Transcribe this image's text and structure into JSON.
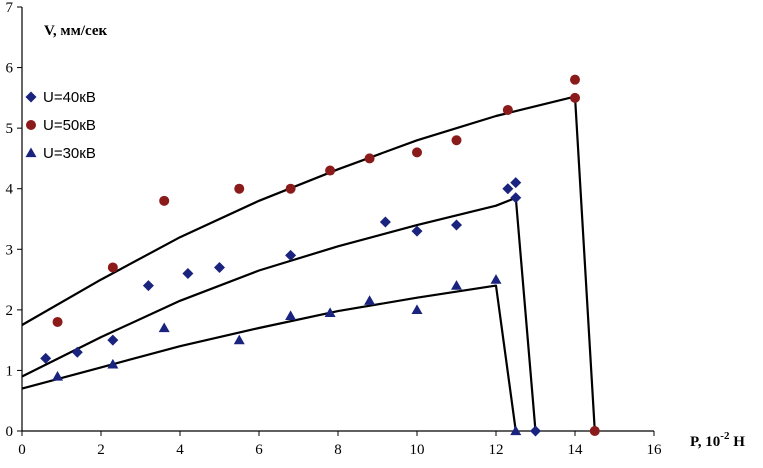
{
  "chart_data": {
    "type": "scatter",
    "title": "",
    "ylabel": "V, мм/сек",
    "xlabel": "P, 10",
    "xlabel_exp": "-2",
    "xlabel_unit": " Н",
    "xlim": [
      0,
      16
    ],
    "ylim": [
      0,
      7
    ],
    "xticks": [
      "0",
      "2",
      "4",
      "6",
      "8",
      "10",
      "12",
      "14",
      "16"
    ],
    "yticks": [
      "0",
      "1",
      "2",
      "3",
      "4",
      "5",
      "6",
      "7"
    ],
    "grid": false,
    "legend_position": "top-left",
    "series": [
      {
        "name": "U=40кВ",
        "marker": "diamond",
        "color": "#1a237e",
        "points": [
          [
            0.6,
            1.2
          ],
          [
            1.4,
            1.3
          ],
          [
            2.3,
            1.5
          ],
          [
            3.2,
            2.4
          ],
          [
            4.2,
            2.6
          ],
          [
            5.0,
            2.7
          ],
          [
            6.8,
            2.9
          ],
          [
            9.2,
            3.45
          ],
          [
            10.0,
            3.3
          ],
          [
            11.0,
            3.4
          ],
          [
            12.3,
            4.0
          ],
          [
            12.5,
            4.1
          ],
          [
            12.5,
            3.85
          ],
          [
            13.0,
            0.0
          ]
        ],
        "trend": [
          [
            0,
            0.9
          ],
          [
            2,
            1.55
          ],
          [
            4,
            2.15
          ],
          [
            6,
            2.65
          ],
          [
            8,
            3.05
          ],
          [
            10,
            3.4
          ],
          [
            12,
            3.72
          ],
          [
            12.5,
            3.85
          ],
          [
            13.0,
            0.0
          ]
        ]
      },
      {
        "name": "U=50кВ",
        "marker": "circle",
        "color": "#8b1a1a",
        "points": [
          [
            0.9,
            1.8
          ],
          [
            2.3,
            2.7
          ],
          [
            3.6,
            3.8
          ],
          [
            5.5,
            4.0
          ],
          [
            6.8,
            4.0
          ],
          [
            7.8,
            4.3
          ],
          [
            8.8,
            4.5
          ],
          [
            10.0,
            4.6
          ],
          [
            11.0,
            4.8
          ],
          [
            12.3,
            5.3
          ],
          [
            14.0,
            5.8
          ],
          [
            14.0,
            5.5
          ],
          [
            14.5,
            0.0
          ]
        ],
        "trend": [
          [
            0,
            1.75
          ],
          [
            2,
            2.5
          ],
          [
            4,
            3.2
          ],
          [
            6,
            3.8
          ],
          [
            8,
            4.32
          ],
          [
            10,
            4.8
          ],
          [
            12,
            5.2
          ],
          [
            14,
            5.52
          ],
          [
            14.5,
            0.0
          ]
        ]
      },
      {
        "name": "U=30кВ",
        "marker": "triangle",
        "color": "#1a237e",
        "points": [
          [
            0.9,
            0.9
          ],
          [
            2.3,
            1.1
          ],
          [
            3.6,
            1.7
          ],
          [
            5.5,
            1.5
          ],
          [
            6.8,
            1.9
          ],
          [
            7.8,
            1.95
          ],
          [
            8.8,
            2.15
          ],
          [
            10.0,
            2.0
          ],
          [
            11.0,
            2.4
          ],
          [
            12.0,
            2.5
          ],
          [
            12.5,
            0.0
          ]
        ],
        "trend": [
          [
            0,
            0.7
          ],
          [
            2,
            1.05
          ],
          [
            4,
            1.4
          ],
          [
            6,
            1.7
          ],
          [
            8,
            1.98
          ],
          [
            10,
            2.2
          ],
          [
            12,
            2.4
          ],
          [
            12.5,
            0.0
          ]
        ]
      }
    ]
  }
}
